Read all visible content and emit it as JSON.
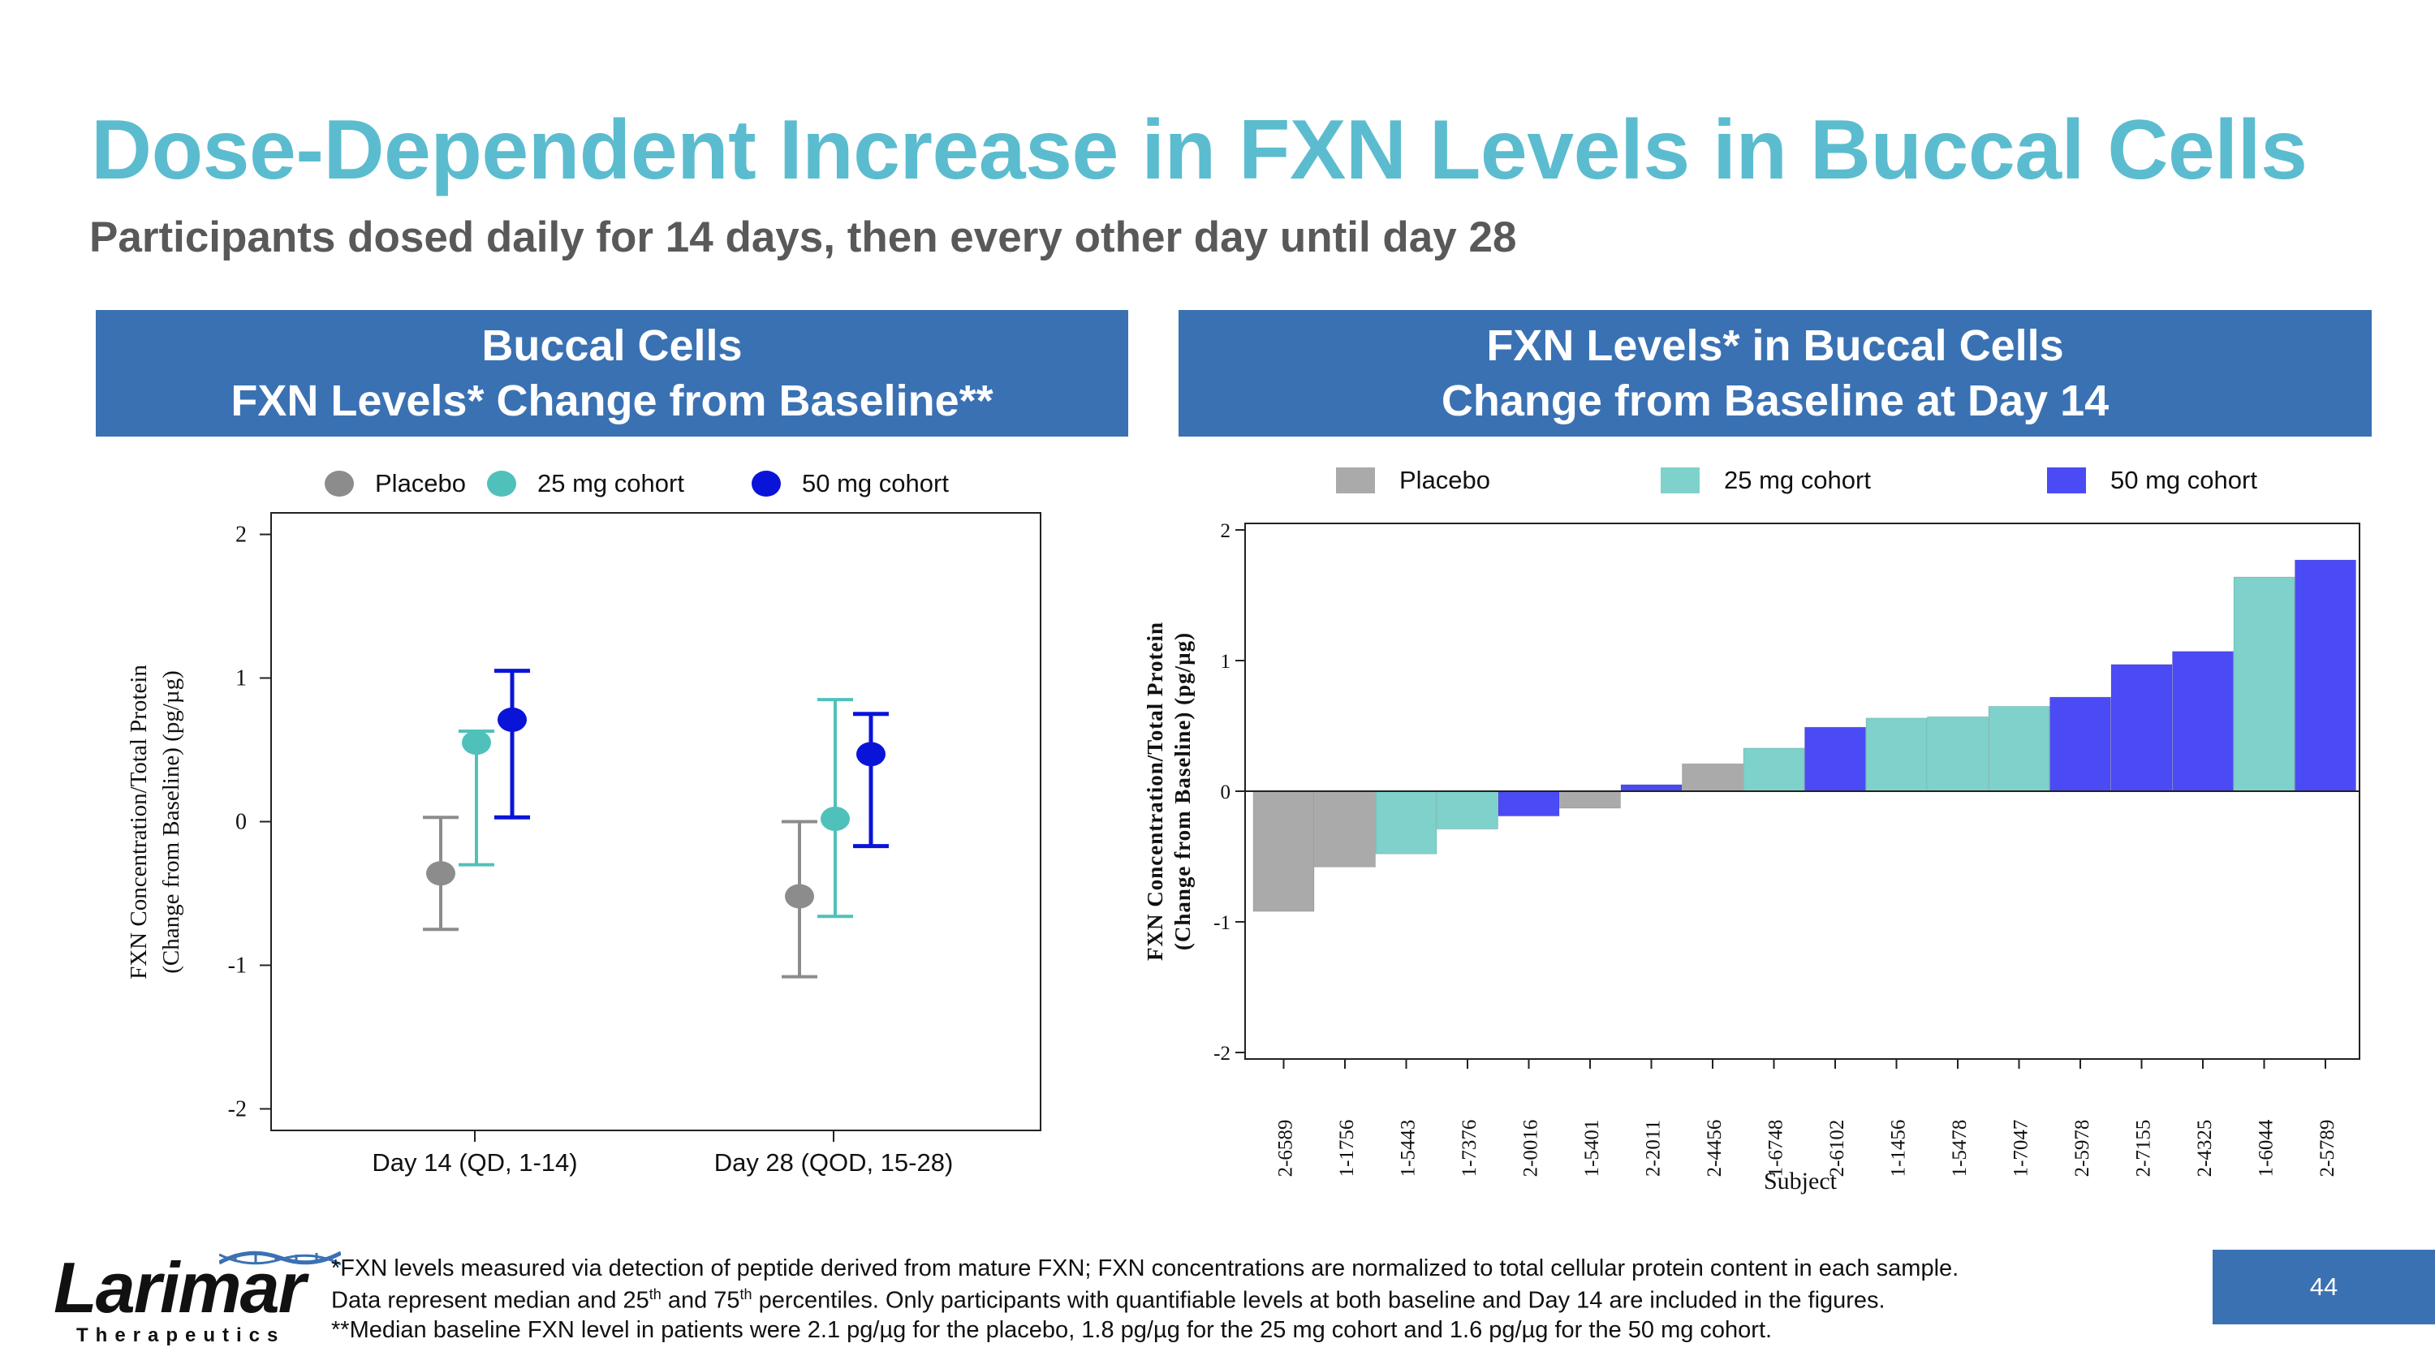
{
  "slide": {
    "title": "Dose-Dependent Increase in FXN Levels in Buccal Cells",
    "subtitle": "Participants dosed daily for 14 days, then every other day until day 28",
    "page_number": "44"
  },
  "left_panel": {
    "header_line1": "Buccal Cells",
    "header_line2": "FXN Levels* Change from Baseline**",
    "legend": [
      "Placebo",
      "25 mg cohort",
      "50 mg cohort"
    ],
    "ylabel_line1": "FXN Concentration/Total Protein",
    "ylabel_line2": "(Change from Baseline) (pg/µg)"
  },
  "right_panel": {
    "header_line1": "FXN Levels* in Buccal Cells",
    "header_line2": "Change from Baseline at Day 14",
    "legend": [
      "Placebo",
      "25 mg cohort",
      "50 mg cohort"
    ],
    "ylabel_line1": "FXN Concentration/Total Protein",
    "ylabel_line2": "(Change from Baseline) (pg/µg)",
    "xlabel": "Subject"
  },
  "colors": {
    "placebo_dot": "#8c8c8c",
    "cohort25_dot": "#4fc1ba",
    "cohort50_dot": "#0a14d8",
    "placebo_bar": "#aaaaaa",
    "cohort25_bar": "#7fd1cb",
    "cohort50_bar": "#4b4bf5",
    "header_blue": "#3a71b3",
    "title_teal": "#5bbccf"
  },
  "footnotes": {
    "line1": "*FXN levels measured via detection of peptide derived from mature FXN; FXN concentrations are normalized to total cellular protein content in each sample.",
    "line2_a": "Data represent median and 25",
    "line2_sup1": "th",
    "line2_b": " and 75",
    "line2_sup2": "th",
    "line2_c": " percentiles. Only participants with quantifiable levels at both baseline and Day 14 are included in the figures.",
    "line3": "**Median baseline FXN level in patients were 2.1 pg/µg for the placebo, 1.8 pg/µg for the 25 mg cohort and 1.6 pg/µg for the 50 mg cohort."
  },
  "logo": {
    "name": "Larimar",
    "tagline": "Therapeutics"
  },
  "chart_data": [
    {
      "type": "scatter",
      "title": "Buccal Cells FXN Levels* Change from Baseline**",
      "xlabel": "",
      "ylabel": "FXN Concentration/Total Protein (Change from Baseline) (pg/µg)",
      "categories": [
        "Day 14 (QD, 1-14)",
        "Day 28 (QOD, 15-28)"
      ],
      "ylim": [
        -2.15,
        2.15
      ],
      "yticks": [
        -2,
        -1,
        0,
        1,
        2
      ],
      "series": [
        {
          "name": "Placebo",
          "median": [
            -0.36,
            -0.52
          ],
          "q25": [
            -0.75,
            -1.08
          ],
          "q75": [
            0.03,
            0.0
          ]
        },
        {
          "name": "25 mg cohort",
          "median": [
            0.55,
            0.02
          ],
          "q25": [
            -0.3,
            -0.66
          ],
          "q75": [
            0.63,
            0.85
          ]
        },
        {
          "name": "50 mg cohort",
          "median": [
            0.71,
            0.47
          ],
          "q25": [
            0.03,
            -0.17
          ],
          "q75": [
            1.05,
            0.75
          ]
        }
      ],
      "legend": "top"
    },
    {
      "type": "bar",
      "title": "FXN Levels* in Buccal Cells Change from Baseline at Day 14",
      "xlabel": "Subject",
      "ylabel": "FXN Concentration/Total Protein (Change from Baseline) (pg/µg)",
      "ylim": [
        -2.05,
        2.05
      ],
      "yticks": [
        -2,
        -1,
        0,
        1,
        2
      ],
      "categories": [
        "2-6589",
        "1-1756",
        "1-5443",
        "1-7376",
        "2-0016",
        "1-5401",
        "2-2011",
        "2-4456",
        "1-6748",
        "2-6102",
        "1-1456",
        "1-5478",
        "1-7047",
        "2-5978",
        "2-7155",
        "2-4325",
        "1-6044",
        "2-5789"
      ],
      "values": [
        -0.92,
        -0.58,
        -0.48,
        -0.29,
        -0.19,
        -0.13,
        0.05,
        0.21,
        0.33,
        0.49,
        0.56,
        0.57,
        0.65,
        0.72,
        0.97,
        1.07,
        1.64,
        1.77
      ],
      "groups": [
        "Placebo",
        "Placebo",
        "25 mg cohort",
        "25 mg cohort",
        "50 mg cohort",
        "Placebo",
        "50 mg cohort",
        "Placebo",
        "25 mg cohort",
        "50 mg cohort",
        "25 mg cohort",
        "25 mg cohort",
        "25 mg cohort",
        "50 mg cohort",
        "50 mg cohort",
        "50 mg cohort",
        "25 mg cohort",
        "50 mg cohort"
      ],
      "legend": "top"
    }
  ]
}
